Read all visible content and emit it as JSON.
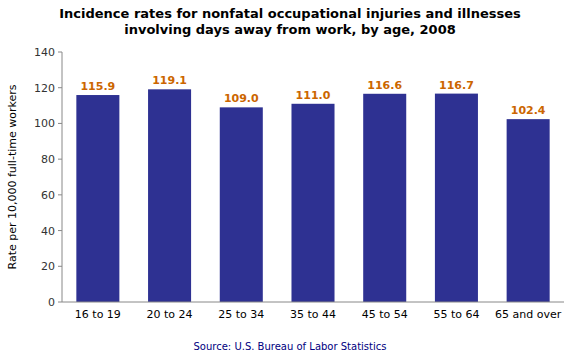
{
  "chart_data": {
    "type": "bar",
    "title": "Incidence rates for nonfatal occupational injuries and illnesses\ninvolving days away from work, by age, 2008",
    "categories": [
      "16 to 19",
      "20 to 24",
      "25 to 34",
      "35 to 44",
      "45 to 54",
      "55 to 64",
      "65 and over"
    ],
    "values": [
      115.9,
      119.1,
      109.0,
      111.0,
      116.6,
      116.7,
      102.4
    ],
    "value_labels": [
      "115.9",
      "119.1",
      "109.0",
      "111.0",
      "116.6",
      "116.7",
      "102.4"
    ],
    "data_labels": true,
    "color": "#2E3192",
    "ylabel": "Rate per 10,000 full-time workers",
    "ylim": [
      0,
      140
    ],
    "yticks": [
      0,
      20,
      40,
      60,
      80,
      100,
      120,
      140
    ],
    "grid": false,
    "source": "Source: U.S. Bureau of Labor Statistics"
  }
}
